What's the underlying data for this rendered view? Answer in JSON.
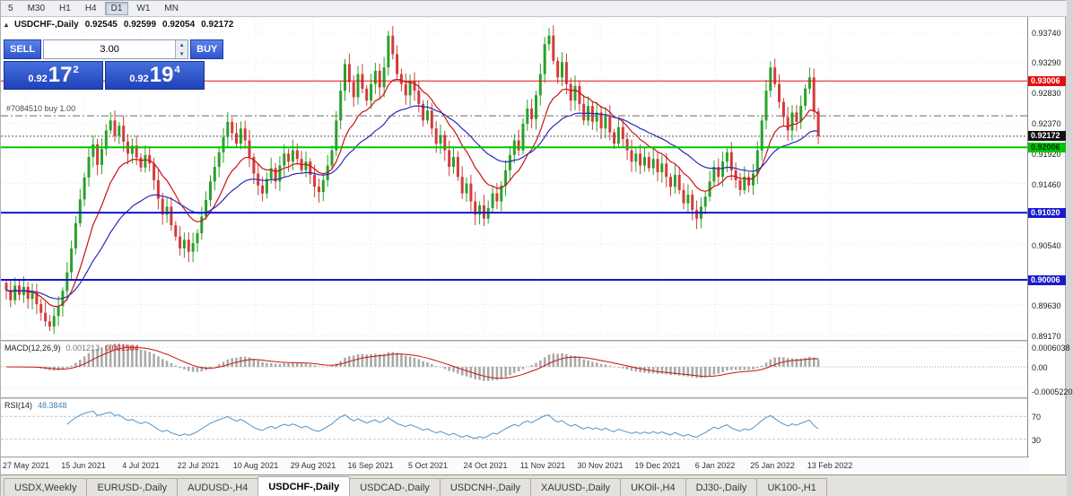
{
  "toolbar": {
    "timeframes": [
      "5",
      "M30",
      "H1",
      "H4",
      "D1",
      "W1",
      "MN"
    ],
    "active": "D1"
  },
  "icons": {
    "collapse": "▴",
    "spinner_up": "▴",
    "spinner_down": "▾"
  },
  "chart": {
    "header": {
      "title": "USDCHF-,Daily",
      "open": "0.92545",
      "high": "0.92599",
      "low": "0.92054",
      "close": "0.92172"
    },
    "trade_panel": {
      "sell_label": "SELL",
      "buy_label": "BUY",
      "volume": "3.00",
      "sell_price": {
        "prefix": "0.92",
        "big": "17",
        "sup": "2"
      },
      "buy_price": {
        "prefix": "0.92",
        "big": "19",
        "sup": "4"
      }
    }
  },
  "chart_data": {
    "type": "candlestick",
    "title": "USDCHF-,Daily",
    "ylim": [
      0.891,
      0.9397
    ],
    "y_ticks": [
      "0.93740",
      "0.93290",
      "0.92830",
      "0.92370",
      "0.91920",
      "0.91460",
      "0.90540",
      "0.89630",
      "0.89170"
    ],
    "x_labels": [
      "27 May 2021",
      "15 Jun 2021",
      "4 Jul 2021",
      "22 Jul 2021",
      "10 Aug 2021",
      "29 Aug 2021",
      "16 Sep 2021",
      "5 Oct 2021",
      "24 Oct 2021",
      "11 Nov 2021",
      "30 Nov 2021",
      "19 Dec 2021",
      "6 Jan 2022",
      "25 Jan 2022",
      "13 Feb 2022"
    ],
    "colors": {
      "up": "#2aa12a",
      "down": "#d23b3b",
      "grid": "#e5e5e5"
    },
    "closes": [
      0.8985,
      0.897,
      0.8992,
      0.8978,
      0.899,
      0.8972,
      0.8981,
      0.8964,
      0.8951,
      0.8938,
      0.893,
      0.8946,
      0.8961,
      0.8984,
      0.9012,
      0.9048,
      0.9086,
      0.9122,
      0.9155,
      0.9186,
      0.9205,
      0.9174,
      0.9198,
      0.9226,
      0.9241,
      0.9218,
      0.9233,
      0.9209,
      0.9191,
      0.9203,
      0.9185,
      0.917,
      0.9189,
      0.9176,
      0.9151,
      0.9123,
      0.9099,
      0.9111,
      0.9083,
      0.9066,
      0.9048,
      0.9061,
      0.9043,
      0.9056,
      0.9071,
      0.9096,
      0.9121,
      0.9149,
      0.9171,
      0.9193,
      0.9216,
      0.9239,
      0.9222,
      0.9206,
      0.9229,
      0.9211,
      0.9186,
      0.9161,
      0.9143,
      0.9131,
      0.9153,
      0.9169,
      0.9149,
      0.9173,
      0.9191,
      0.9179,
      0.9196,
      0.9183,
      0.9166,
      0.9179,
      0.9159,
      0.9141,
      0.9133,
      0.9151,
      0.9173,
      0.9196,
      0.9241,
      0.9286,
      0.9326,
      0.9299,
      0.9276,
      0.9311,
      0.9289,
      0.9271,
      0.9296,
      0.9316,
      0.9291,
      0.9321,
      0.9369,
      0.9341,
      0.9311,
      0.9296,
      0.9279,
      0.9301,
      0.9286,
      0.9266,
      0.9241,
      0.9256,
      0.9229,
      0.9206,
      0.9219,
      0.9196,
      0.9171,
      0.9186,
      0.9156,
      0.9131,
      0.9146,
      0.9119,
      0.9099,
      0.9113,
      0.9093,
      0.9109,
      0.9131,
      0.9119,
      0.9143,
      0.9166,
      0.9189,
      0.9211,
      0.9196,
      0.9236,
      0.9259,
      0.9243,
      0.9279,
      0.9311,
      0.9356,
      0.9369,
      0.9331,
      0.9306,
      0.9329,
      0.9296,
      0.9271,
      0.9293,
      0.9266,
      0.9241,
      0.9263,
      0.9239,
      0.9253,
      0.9229,
      0.9249,
      0.9223,
      0.9206,
      0.9231,
      0.9213,
      0.9196,
      0.9179,
      0.9191,
      0.9173,
      0.9186,
      0.9169,
      0.9183,
      0.9163,
      0.9176,
      0.9156,
      0.9141,
      0.9159,
      0.9136,
      0.9116,
      0.9129,
      0.9106,
      0.9093,
      0.9111,
      0.9126,
      0.9149,
      0.9171,
      0.9156,
      0.9179,
      0.9193,
      0.9166,
      0.9151,
      0.9136,
      0.9156,
      0.9143,
      0.9161,
      0.9196,
      0.9241,
      0.9286,
      0.9321,
      0.9296,
      0.9269,
      0.9246,
      0.9226,
      0.9253,
      0.9239,
      0.9263,
      0.9289,
      0.9306,
      0.92545,
      0.92172
    ],
    "last_candle": {
      "open": 0.92545,
      "high": 0.92599,
      "low": 0.92054,
      "close": 0.92172
    },
    "levels": [
      {
        "name": "resistance-line",
        "price": 0.93006,
        "label": "0.93006",
        "color": "#e01010",
        "width": 1,
        "dash": "",
        "badge": {
          "bg": "#e01010",
          "fg": "#ffffff"
        }
      },
      {
        "name": "order-open-line",
        "price": 0.9248,
        "label": "#7084510 buy 1.00",
        "color": "#6a6a6a",
        "width": 1,
        "dash": "8,3,2,3",
        "badge": null
      },
      {
        "name": "current-price-line",
        "price": 0.92172,
        "label": "0.92172",
        "color": "#555555",
        "width": 1,
        "dash": "2,2",
        "badge": {
          "bg": "#111111",
          "fg": "#ffffff"
        }
      },
      {
        "name": "entry-line",
        "price": 0.92006,
        "label": "0.92006",
        "color": "#00c400",
        "width": 2,
        "dash": "",
        "badge": {
          "bg": "#00c400",
          "fg": "#003308"
        }
      },
      {
        "name": "support-line-1",
        "price": 0.9102,
        "label": "0.91020",
        "color": "#1414cc",
        "width": 2,
        "dash": "",
        "badge": {
          "bg": "#1a1acc",
          "fg": "#ffffff"
        }
      },
      {
        "name": "support-line-2",
        "price": 0.90006,
        "label": "0.90006",
        "color": "#1414cc",
        "width": 2,
        "dash": "",
        "badge": {
          "bg": "#1a1acc",
          "fg": "#ffffff"
        }
      }
    ],
    "overlays": [
      {
        "name": "ma-fast",
        "period": 12,
        "color": "#cc1111"
      },
      {
        "name": "ma-slow",
        "period": 30,
        "color": "#2a2ab8"
      }
    ],
    "indicators": {
      "macd": {
        "label": "MACD(12,26,9)",
        "fast": 12,
        "slow": 26,
        "signal": 9,
        "value_main": "0.001213",
        "value_signal": "0.001584",
        "axis": [
          "0.0006038",
          "0.00",
          "-0.0005220"
        ],
        "histogram_color": "#a8a8a8",
        "signal_color": "#cc1111"
      },
      "rsi": {
        "label": "RSI(14)",
        "period": 14,
        "value": "48.3848",
        "levels": [
          "70",
          "30"
        ],
        "color": "#4f93c8"
      }
    }
  },
  "tabs": {
    "items": [
      "USDX,Weekly",
      "EURUSD-,Daily",
      "AUDUSD-,H4",
      "USDCHF-,Daily",
      "USDCAD-,Daily",
      "USDCNH-,Daily",
      "XAUUSD-,Daily",
      "UKOil-,H4",
      "DJ30-,Daily",
      "UK100-,H1"
    ],
    "active_index": 3
  }
}
